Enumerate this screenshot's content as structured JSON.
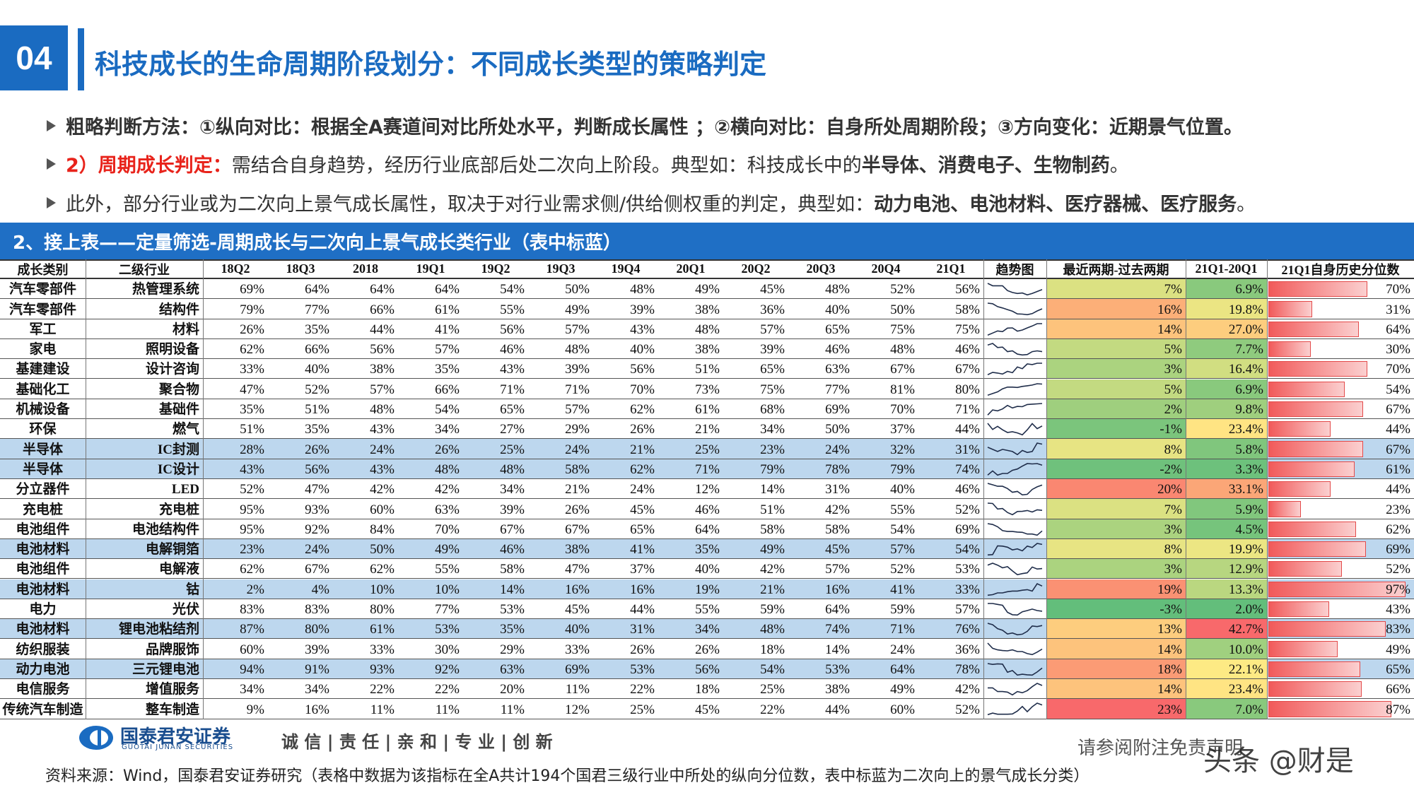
{
  "header": {
    "number": "04",
    "title": "科技成长的生命周期阶段划分：不同成长类型的策略判定"
  },
  "bullets": [
    {
      "segments": [
        {
          "text": "粗略判断方法：①纵向对比：根据全A赛道间对比所处水平，判断成长属性 ；②横向对比：自身所处周期阶段；③方向变化：近期景气位置。",
          "bold": true
        }
      ]
    },
    {
      "segments": [
        {
          "text": "2）周期成长判定：",
          "bold": true,
          "color": "#e8231b"
        },
        {
          "text": "需结合自身趋势，经历行业底部后处二次向上阶段。典型如：科技成长中的"
        },
        {
          "text": "半导体、消费电子、生物制药",
          "bold": true
        },
        {
          "text": "。"
        }
      ]
    },
    {
      "segments": [
        {
          "text": "此外，部分行业或为二次向上景气成长属性，取决于对行业需求侧/供给侧权重的判定，典型如："
        },
        {
          "text": "动力电池、电池材料、医疗器械、医疗服务",
          "bold": true
        },
        {
          "text": "。"
        }
      ]
    }
  ],
  "banner": "2、接上表——定量筛选-周期成长与二次向上景气成长类行业（表中标蓝）",
  "table": {
    "header": [
      "成长类别",
      "二级行业",
      "18Q2",
      "18Q3",
      "2018",
      "19Q1",
      "19Q2",
      "19Q3",
      "19Q4",
      "20Q1",
      "20Q2",
      "20Q3",
      "20Q4",
      "21Q1",
      "趋势图",
      "最近两期-过去两期",
      "21Q1-20Q1",
      "21Q1自身历史分位数"
    ],
    "rows": [
      {
        "cells": [
          "汽车零部件",
          "热管理系统",
          "69%",
          "64%",
          "64%",
          "64%",
          "54%",
          "50%",
          "48%",
          "49%",
          "45%",
          "48%",
          "52%",
          "56%",
          "7%",
          "6.9%",
          "70%"
        ]
      },
      {
        "cells": [
          "汽车零部件",
          "结构件",
          "79%",
          "77%",
          "66%",
          "61%",
          "55%",
          "49%",
          "39%",
          "38%",
          "36%",
          "40%",
          "50%",
          "58%",
          "16%",
          "19.8%",
          "31%"
        ]
      },
      {
        "cells": [
          "军工",
          "材料",
          "26%",
          "35%",
          "44%",
          "41%",
          "56%",
          "57%",
          "43%",
          "48%",
          "57%",
          "65%",
          "75%",
          "75%",
          "14%",
          "27.0%",
          "64%"
        ]
      },
      {
        "cells": [
          "家电",
          "照明设备",
          "62%",
          "66%",
          "56%",
          "57%",
          "46%",
          "48%",
          "40%",
          "38%",
          "39%",
          "46%",
          "48%",
          "46%",
          "5%",
          "7.7%",
          "30%"
        ]
      },
      {
        "cells": [
          "基建建设",
          "设计咨询",
          "33%",
          "40%",
          "38%",
          "35%",
          "43%",
          "39%",
          "56%",
          "51%",
          "65%",
          "63%",
          "67%",
          "67%",
          "3%",
          "16.4%",
          "70%"
        ]
      },
      {
        "cells": [
          "基础化工",
          "聚合物",
          "47%",
          "52%",
          "57%",
          "66%",
          "71%",
          "71%",
          "70%",
          "73%",
          "75%",
          "77%",
          "81%",
          "80%",
          "5%",
          "6.9%",
          "54%"
        ]
      },
      {
        "cells": [
          "机械设备",
          "基础件",
          "35%",
          "51%",
          "48%",
          "54%",
          "65%",
          "57%",
          "62%",
          "61%",
          "68%",
          "69%",
          "70%",
          "71%",
          "2%",
          "9.8%",
          "67%"
        ]
      },
      {
        "cells": [
          "环保",
          "燃气",
          "51%",
          "35%",
          "43%",
          "34%",
          "27%",
          "29%",
          "26%",
          "21%",
          "34%",
          "50%",
          "37%",
          "44%",
          "-1%",
          "23.4%",
          "44%"
        ]
      },
      {
        "cells": [
          "半导体",
          "IC封测",
          "28%",
          "26%",
          "24%",
          "26%",
          "25%",
          "24%",
          "21%",
          "25%",
          "23%",
          "24%",
          "32%",
          "31%",
          "8%",
          "5.8%",
          "67%"
        ],
        "highlight": true
      },
      {
        "cells": [
          "半导体",
          "IC设计",
          "43%",
          "56%",
          "43%",
          "48%",
          "48%",
          "58%",
          "62%",
          "71%",
          "79%",
          "78%",
          "79%",
          "74%",
          "-2%",
          "3.3%",
          "61%"
        ],
        "highlight": true
      },
      {
        "cells": [
          "分立器件",
          "LED",
          "52%",
          "47%",
          "42%",
          "42%",
          "34%",
          "21%",
          "24%",
          "12%",
          "14%",
          "31%",
          "40%",
          "46%",
          "20%",
          "33.1%",
          "44%"
        ]
      },
      {
        "cells": [
          "充电桩",
          "充电桩",
          "95%",
          "93%",
          "60%",
          "63%",
          "39%",
          "26%",
          "45%",
          "46%",
          "51%",
          "42%",
          "55%",
          "52%",
          "7%",
          "5.9%",
          "23%"
        ]
      },
      {
        "cells": [
          "电池组件",
          "电池结构件",
          "95%",
          "92%",
          "84%",
          "70%",
          "67%",
          "67%",
          "65%",
          "64%",
          "58%",
          "58%",
          "54%",
          "69%",
          "3%",
          "4.5%",
          "62%"
        ]
      },
      {
        "cells": [
          "电池材料",
          "电解铜箔",
          "23%",
          "24%",
          "50%",
          "49%",
          "46%",
          "38%",
          "41%",
          "35%",
          "49%",
          "45%",
          "57%",
          "54%",
          "8%",
          "19.9%",
          "69%"
        ],
        "highlight": true
      },
      {
        "cells": [
          "电池组件",
          "电解液",
          "62%",
          "67%",
          "62%",
          "55%",
          "58%",
          "47%",
          "37%",
          "40%",
          "42%",
          "57%",
          "52%",
          "53%",
          "3%",
          "12.9%",
          "52%"
        ]
      },
      {
        "cells": [
          "电池材料",
          "钴",
          "2%",
          "4%",
          "10%",
          "10%",
          "14%",
          "16%",
          "16%",
          "19%",
          "21%",
          "16%",
          "41%",
          "33%",
          "19%",
          "13.3%",
          "97%"
        ],
        "highlight": true
      },
      {
        "cells": [
          "电力",
          "光伏",
          "83%",
          "83%",
          "80%",
          "77%",
          "53%",
          "45%",
          "44%",
          "55%",
          "59%",
          "64%",
          "59%",
          "57%",
          "-3%",
          "2.0%",
          "43%"
        ]
      },
      {
        "cells": [
          "电池材料",
          "锂电池粘结剂",
          "87%",
          "80%",
          "61%",
          "53%",
          "35%",
          "40%",
          "31%",
          "34%",
          "48%",
          "74%",
          "71%",
          "76%",
          "13%",
          "42.7%",
          "83%"
        ],
        "highlight": true
      },
      {
        "cells": [
          "纺织服装",
          "品牌服饰",
          "60%",
          "39%",
          "33%",
          "30%",
          "29%",
          "33%",
          "26%",
          "26%",
          "18%",
          "14%",
          "24%",
          "36%",
          "14%",
          "10.0%",
          "49%"
        ]
      },
      {
        "cells": [
          "动力电池",
          "三元锂电池",
          "94%",
          "91%",
          "93%",
          "92%",
          "63%",
          "69%",
          "53%",
          "56%",
          "54%",
          "53%",
          "64%",
          "78%",
          "18%",
          "22.1%",
          "65%"
        ],
        "highlight": true
      },
      {
        "cells": [
          "电信服务",
          "增值服务",
          "34%",
          "34%",
          "22%",
          "22%",
          "20%",
          "11%",
          "22%",
          "18%",
          "25%",
          "38%",
          "49%",
          "42%",
          "14%",
          "23.4%",
          "66%"
        ]
      },
      {
        "cells": [
          "传统汽车制造",
          "整车制造",
          "9%",
          "16%",
          "11%",
          "11%",
          "11%",
          "12%",
          "25%",
          "45%",
          "22%",
          "44%",
          "60%",
          "52%",
          "23%",
          "7.0%",
          "87%"
        ]
      }
    ]
  },
  "footer": {
    "company": "国泰君安证券",
    "company_en": "GUOTAI JUNAN SECURITIES",
    "slogan": "诚 信 | 责 任 | 亲 和 | 专 业 | 创 新",
    "disclaimer": "请参阅附注免责声明",
    "watermark": "头条 @财是",
    "source": "资料来源：Wind，国泰君安证券研究（表格中数据为该指标在全A共计194个国君三级行业中所处的纵向分位数，表中标蓝为二次向上的景气成长分类）"
  }
}
